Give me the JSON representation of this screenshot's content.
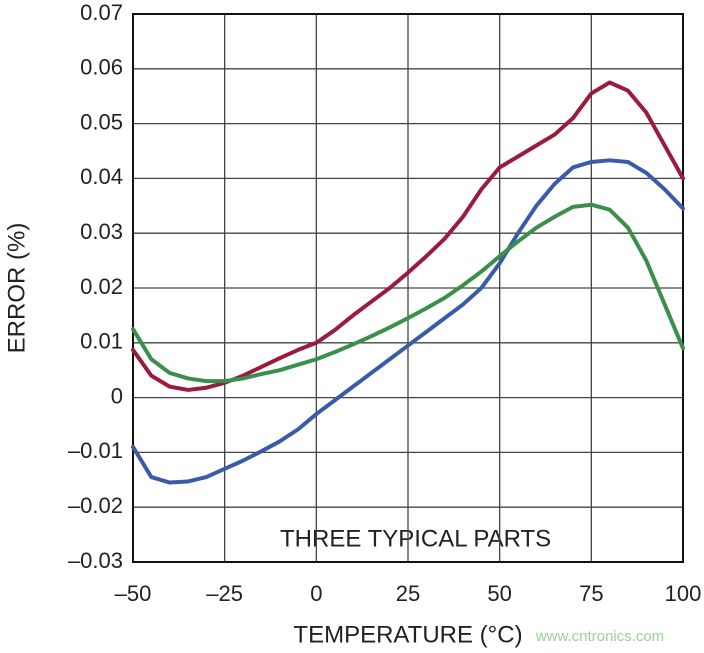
{
  "chart_data": {
    "type": "line",
    "title_annotation": "THREE TYPICAL PARTS",
    "xlabel": "TEMPERATURE (°C)",
    "ylabel": "ERROR (%)",
    "watermark": "www.cntronics.com",
    "x": [
      -50,
      -45,
      -40,
      -35,
      -30,
      -25,
      -20,
      -15,
      -10,
      -5,
      0,
      5,
      10,
      15,
      20,
      25,
      30,
      35,
      40,
      45,
      50,
      55,
      60,
      65,
      70,
      75,
      80,
      85,
      90,
      95,
      100
    ],
    "series": [
      {
        "color": "#9b1b3a",
        "values": [
          0.0087,
          0.004,
          0.002,
          0.0014,
          0.0018,
          0.0027,
          0.004,
          0.0056,
          0.0072,
          0.0087,
          0.01,
          0.0123,
          0.015,
          0.0175,
          0.02,
          0.0228,
          0.0258,
          0.029,
          0.033,
          0.038,
          0.042,
          0.044,
          0.046,
          0.048,
          0.051,
          0.0555,
          0.0575,
          0.056,
          0.052,
          0.046,
          0.04
        ]
      },
      {
        "color": "#3a5ba8",
        "values": [
          -0.009,
          -0.0145,
          -0.0155,
          -0.0153,
          -0.0145,
          -0.013,
          -0.0115,
          -0.0098,
          -0.008,
          -0.0058,
          -0.003,
          -0.0005,
          0.002,
          0.0045,
          0.007,
          0.0095,
          0.012,
          0.0145,
          0.017,
          0.02,
          0.0245,
          0.03,
          0.035,
          0.039,
          0.042,
          0.043,
          0.0433,
          0.043,
          0.041,
          0.038,
          0.0345
        ]
      },
      {
        "color": "#3a8f4a",
        "values": [
          0.0125,
          0.007,
          0.0045,
          0.0035,
          0.003,
          0.003,
          0.0035,
          0.0043,
          0.005,
          0.006,
          0.007,
          0.0083,
          0.0097,
          0.0112,
          0.0128,
          0.0145,
          0.0163,
          0.0182,
          0.0205,
          0.023,
          0.0258,
          0.0285,
          0.031,
          0.033,
          0.0348,
          0.0352,
          0.0343,
          0.031,
          0.025,
          0.017,
          0.009
        ]
      }
    ],
    "xlim": [
      -50,
      100
    ],
    "xticks": [
      {
        "value": -50,
        "label": "–50"
      },
      {
        "value": -25,
        "label": "–25"
      },
      0,
      25,
      50,
      75,
      100
    ],
    "ylim": [
      -0.03,
      0.07
    ],
    "yticks": [
      {
        "value": -0.03,
        "label": "–0.03"
      },
      {
        "value": -0.02,
        "label": "–0.02"
      },
      {
        "value": -0.01,
        "label": "–0.01"
      },
      0,
      0.01,
      0.02,
      0.03,
      0.04,
      0.05,
      0.06,
      0.07
    ],
    "grid": true
  }
}
